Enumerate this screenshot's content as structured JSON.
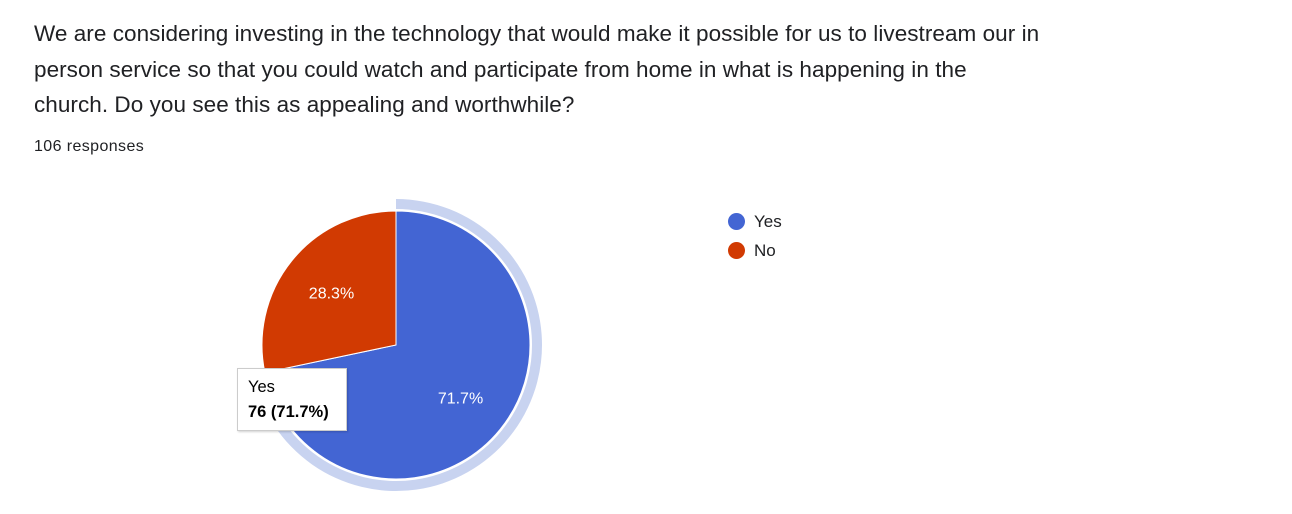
{
  "question": {
    "text": "We are considering investing in the technology that would make it possible for us to livestream our in person service so that you could watch and participate from home in what is happening in the church. Do you see this as appealing and worthwhile?",
    "responses_label": "106 responses"
  },
  "chart_data": {
    "type": "pie",
    "title": "",
    "total": 106,
    "slices": [
      {
        "name": "Yes",
        "count": 76,
        "percent": 71.7,
        "label": "71.7%",
        "color": "#4365d3"
      },
      {
        "name": "No",
        "count": 30,
        "percent": 28.3,
        "label": "28.3%",
        "color": "#d13a02"
      }
    ],
    "highlighted_slice": "Yes",
    "highlight_ring_color": "#c8d3f0",
    "legend_position": "right"
  },
  "legend": {
    "items": [
      {
        "label": "Yes",
        "color": "#4365d3"
      },
      {
        "label": "No",
        "color": "#d13a02"
      }
    ]
  },
  "tooltip": {
    "label": "Yes",
    "value": "76 (71.7%)"
  }
}
